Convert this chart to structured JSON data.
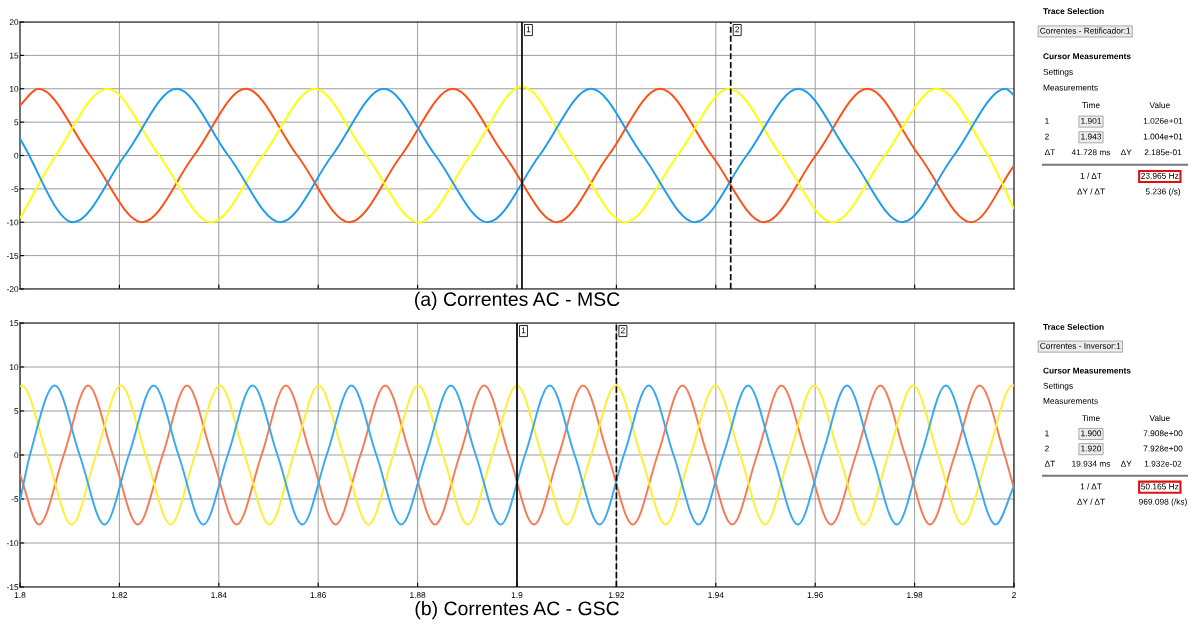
{
  "chart_data": [
    {
      "type": "line",
      "xlabel": "(a) Correntes AC - MSC",
      "xlim": [
        1.8,
        2.0
      ],
      "ylim": [
        -20,
        20
      ],
      "xticks": [
        {
          "value": 1.82,
          "label": null
        },
        {
          "value": 1.84,
          "label": null
        },
        {
          "value": 1.86,
          "label": null
        },
        {
          "value": 1.88,
          "label": null
        },
        {
          "value": 1.9,
          "label": null
        },
        {
          "value": 1.92,
          "label": null
        },
        {
          "value": 1.94,
          "label": null
        },
        {
          "value": 1.96,
          "label": null
        },
        {
          "value": 1.98,
          "label": null
        }
      ],
      "yticks": [
        -20,
        -15,
        -10,
        -5,
        0,
        5,
        10,
        15,
        20
      ],
      "tick_labels": "y",
      "grid": true,
      "legend": false,
      "series": [
        {
          "color": "#ff5014",
          "x": [
            1.8,
            1.8037,
            1.8141,
            1.8246,
            1.835,
            1.8454,
            1.8558,
            1.8663,
            1.8767,
            1.8871,
            1.8975,
            1.908,
            1.9184,
            1.9288,
            1.9392,
            1.9497,
            1.9601,
            1.9705,
            1.9809,
            1.9914,
            2.0
          ],
          "values": [
            7.5,
            10,
            0,
            -10,
            0,
            10,
            0,
            -10,
            0,
            10,
            0,
            -10,
            0,
            10,
            0,
            -10,
            0,
            10,
            0,
            -10,
            -1.5
          ]
        },
        {
          "color": "#ffff00",
          "x": [
            1.8,
            1.8072,
            1.8176,
            1.828,
            1.8385,
            1.8489,
            1.8593,
            1.8697,
            1.8802,
            1.8906,
            1.901,
            1.9114,
            1.9218,
            1.9323,
            1.9427,
            1.9531,
            1.9635,
            1.974,
            1.9844,
            1.9948,
            2.0
          ],
          "values": [
            -9.4,
            0,
            10,
            0,
            -10,
            0,
            10,
            0,
            -10,
            0,
            10.3,
            0,
            -10,
            0,
            10,
            0,
            -10,
            0,
            10,
            0,
            -8
          ]
        },
        {
          "color": "#1e9bf0",
          "x": [
            1.8,
            1.8107,
            1.8211,
            1.8315,
            1.8419,
            1.8524,
            1.8628,
            1.8732,
            1.8836,
            1.8941,
            1.9045,
            1.9149,
            1.9253,
            1.9358,
            1.9462,
            1.9566,
            1.967,
            1.9775,
            1.9879,
            1.9983,
            2.0
          ],
          "values": [
            2.5,
            -10,
            0,
            10,
            0,
            -10,
            0,
            10,
            0,
            -10,
            0,
            10,
            0,
            -10,
            0,
            10,
            0,
            -10,
            0,
            10,
            9
          ]
        }
      ],
      "ref_lines": [
        {
          "axis": "x",
          "value": 1.901,
          "color": "#000000",
          "line_style": "solid"
        },
        {
          "axis": "x",
          "value": 1.943,
          "color": "#000000",
          "line_style": "dashed"
        }
      ],
      "annotations": [
        {
          "text": "1",
          "x": 1.901,
          "y": 20
        },
        {
          "text": "2",
          "x": 1.943,
          "y": 20
        },
        "Trace Selection",
        "Correntes - Retificador:1",
        "Cursor Measurements",
        "Settings",
        "Measurements",
        "Time",
        "Value",
        "1",
        "1.901",
        "1.026e+01",
        "2",
        "1.943",
        "1.004e+01",
        "ΔT",
        "41.728 ms",
        "ΔY",
        "2.185e-01",
        "1 / ΔT",
        "23.965 Hz",
        "ΔY / ΔT",
        "5.236 (/s)"
      ]
    },
    {
      "type": "line",
      "xlabel": "(b) Correntes AC - GSC",
      "xlim": [
        1.8,
        2.0
      ],
      "ylim": [
        -15,
        15
      ],
      "xticks": [
        1.8,
        1.82,
        1.84,
        1.86,
        1.88,
        1.9,
        1.92,
        1.94,
        1.96,
        1.98,
        2
      ],
      "yticks": [
        -15,
        -10,
        -5,
        0,
        5,
        10,
        15
      ],
      "grid": true,
      "legend": false,
      "series": [
        {
          "color": "#f77a55",
          "x": [
            1.8,
            1.8038,
            1.8088,
            1.8137,
            1.8187,
            1.8237,
            1.8287,
            1.8336,
            1.8386,
            1.8436,
            1.8486,
            1.8535,
            1.8585,
            1.8635,
            1.8685,
            1.8735,
            1.8785,
            1.8835,
            1.8885,
            1.8934,
            1.8984,
            1.9034,
            1.9084,
            1.9133,
            1.9183,
            1.9233,
            1.9283,
            1.9333,
            1.9383,
            1.9433,
            1.9483,
            1.9532,
            1.9582,
            1.9632,
            1.9682,
            1.9731,
            1.9781,
            1.9831,
            1.9881,
            1.9931,
            1.9981,
            2.0
          ],
          "values": [
            -2.2,
            -7.9,
            0,
            7.9,
            0,
            -7.9,
            0,
            7.9,
            0,
            -7.9,
            0,
            7.9,
            0,
            -7.9,
            0,
            7.9,
            0,
            -7.9,
            0,
            7.9,
            0,
            -7.9,
            0,
            7.9,
            0,
            -7.9,
            0,
            7.9,
            0,
            -7.9,
            0,
            7.9,
            0,
            -7.9,
            0,
            7.9,
            0,
            -7.9,
            0,
            7.9,
            0,
            -3.8
          ]
        },
        {
          "color": "#ffee33",
          "x": [
            1.8,
            1.8004,
            1.8054,
            1.8104,
            1.8153,
            1.8203,
            1.8253,
            1.8303,
            1.8352,
            1.8402,
            1.8452,
            1.8502,
            1.8551,
            1.8601,
            1.8651,
            1.8701,
            1.8751,
            1.8801,
            1.8851,
            1.8901,
            1.895,
            1.9,
            1.905,
            1.91,
            1.9149,
            1.9199,
            1.9249,
            1.9299,
            1.9349,
            1.9399,
            1.9449,
            1.9499,
            1.9548,
            1.9598,
            1.9648,
            1.9698,
            1.9747,
            1.9797,
            1.9847,
            1.9897,
            1.9947,
            1.9997,
            2.0
          ],
          "values": [
            7.8,
            7.9,
            0,
            -7.9,
            0,
            7.9,
            0,
            -7.9,
            0,
            7.9,
            0,
            -7.9,
            0,
            7.9,
            0,
            -7.9,
            0,
            7.9,
            0,
            -7.9,
            0,
            7.9,
            0,
            -7.9,
            0,
            7.9,
            0,
            -7.9,
            0,
            7.9,
            0,
            -7.9,
            0,
            7.9,
            0,
            -7.9,
            0,
            7.9,
            0,
            -7.9,
            0,
            7.9,
            7.9
          ]
        },
        {
          "color": "#3aa8f0",
          "x": [
            1.8,
            1.802,
            1.807,
            1.812,
            1.817,
            1.8219,
            1.8269,
            1.8319,
            1.8369,
            1.8418,
            1.8468,
            1.8518,
            1.8568,
            1.8617,
            1.8667,
            1.8717,
            1.8767,
            1.8817,
            1.8867,
            1.8917,
            1.8967,
            1.9016,
            1.9066,
            1.9116,
            1.9166,
            1.9215,
            1.9265,
            1.9315,
            1.9365,
            1.9415,
            1.9465,
            1.9515,
            1.9565,
            1.9614,
            1.9664,
            1.9714,
            1.9764,
            1.9813,
            1.9863,
            1.9913,
            1.9963,
            2.0
          ],
          "values": [
            -5.2,
            0,
            7.9,
            0,
            -7.9,
            0,
            7.9,
            0,
            -7.9,
            0,
            7.9,
            0,
            -7.9,
            0,
            7.9,
            0,
            -7.9,
            0,
            7.9,
            0,
            -7.9,
            0,
            7.9,
            0,
            -7.9,
            0,
            7.9,
            0,
            -7.9,
            0,
            7.9,
            0,
            -7.9,
            0,
            7.9,
            0,
            -7.9,
            0,
            7.9,
            0,
            -7.9,
            -3.5
          ]
        }
      ],
      "ref_lines": [
        {
          "axis": "x",
          "value": 1.9,
          "color": "#000000",
          "line_style": "solid"
        },
        {
          "axis": "x",
          "value": 1.92,
          "color": "#000000",
          "line_style": "dashed"
        }
      ],
      "annotations": [
        {
          "text": "1",
          "x": 1.9,
          "y": 15
        },
        {
          "text": "2",
          "x": 1.92,
          "y": 15
        },
        "Trace Selection",
        "Correntes - Inversor:1",
        "Cursor Measurements",
        "Settings",
        "Measurements",
        "Time",
        "Value",
        "1",
        "1.900",
        "7.908e+00",
        "2",
        "1.920",
        "7.928e+00",
        "ΔT",
        "19.934 ms",
        "ΔY",
        "1.932e-02",
        "1 / ΔT",
        "50.165 Hz",
        "ΔY / ΔT",
        "969.098 (/ks)"
      ]
    }
  ]
}
